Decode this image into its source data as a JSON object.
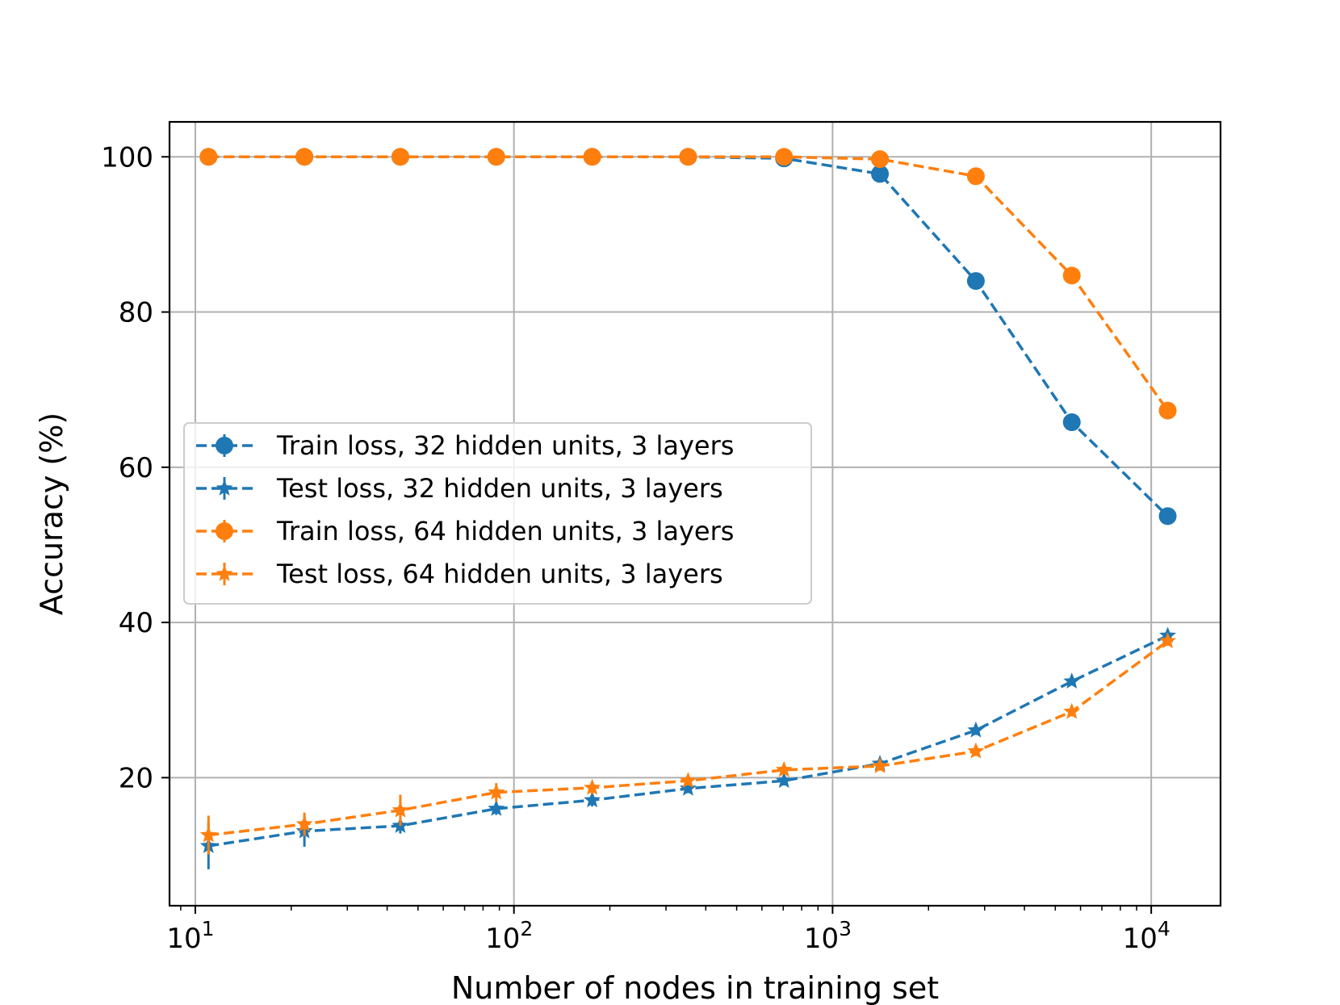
{
  "chart_data": {
    "type": "line",
    "xscale": "log",
    "xlabel": "Number of nodes in training set",
    "ylabel": "Accuracy (%)",
    "title": "",
    "xlim": [
      8.3,
      16500
    ],
    "ylim": [
      3.5,
      104.5
    ],
    "grid": true,
    "legend_position": "center-left",
    "x_ticks": [
      {
        "value": 10,
        "base": "10",
        "exp": "1"
      },
      {
        "value": 100,
        "base": "10",
        "exp": "2"
      },
      {
        "value": 1000,
        "base": "10",
        "exp": "3"
      },
      {
        "value": 10000,
        "base": "10",
        "exp": "4"
      }
    ],
    "y_ticks": [
      {
        "value": 20,
        "label": "20"
      },
      {
        "value": 40,
        "label": "40"
      },
      {
        "value": 60,
        "label": "60"
      },
      {
        "value": 80,
        "label": "80"
      },
      {
        "value": 100,
        "label": "100"
      }
    ],
    "x": [
      11,
      22,
      44,
      88,
      176,
      352,
      704,
      1408,
      2816,
      5632,
      11264
    ],
    "series": [
      {
        "name": "Train loss, 32 hidden units, 3 layers",
        "color": "#1f77b4",
        "marker": "circle",
        "values": [
          100,
          100,
          100,
          100,
          100,
          100,
          99.8,
          97.8,
          84,
          65.8,
          53.7
        ],
        "errors": [
          0,
          0,
          0,
          0,
          0,
          0,
          0.3,
          0.5,
          0.6,
          0.6,
          0.6
        ]
      },
      {
        "name": "Test loss, 32 hidden units, 3 layers",
        "color": "#1f77b4",
        "marker": "star",
        "values": [
          11.2,
          13.1,
          13.8,
          16.0,
          17.1,
          18.6,
          19.6,
          21.8,
          26.1,
          32.4,
          38.3
        ],
        "errors": [
          3.0,
          2.0,
          1.0,
          0.8,
          0.8,
          0.6,
          0.6,
          0.6,
          0.6,
          0.5,
          0.6
        ]
      },
      {
        "name": "Train loss, 64 hidden units, 3 layers",
        "color": "#ff7f0e",
        "marker": "circle",
        "values": [
          100,
          100,
          100,
          100,
          100,
          100,
          100,
          99.7,
          97.5,
          84.7,
          67.3
        ],
        "errors": [
          0,
          0,
          0,
          0,
          0,
          0,
          0.2,
          0.3,
          0.5,
          0.6,
          0.6
        ]
      },
      {
        "name": "Test loss, 64 hidden units, 3 layers",
        "color": "#ff7f0e",
        "marker": "star",
        "values": [
          12.6,
          14.0,
          15.8,
          18.1,
          18.7,
          19.6,
          21.0,
          21.5,
          23.4,
          28.5,
          37.6
        ],
        "errors": [
          2.5,
          1.5,
          2.0,
          1.2,
          0.8,
          0.6,
          0.6,
          0.6,
          0.6,
          0.6,
          0.6
        ]
      }
    ]
  }
}
